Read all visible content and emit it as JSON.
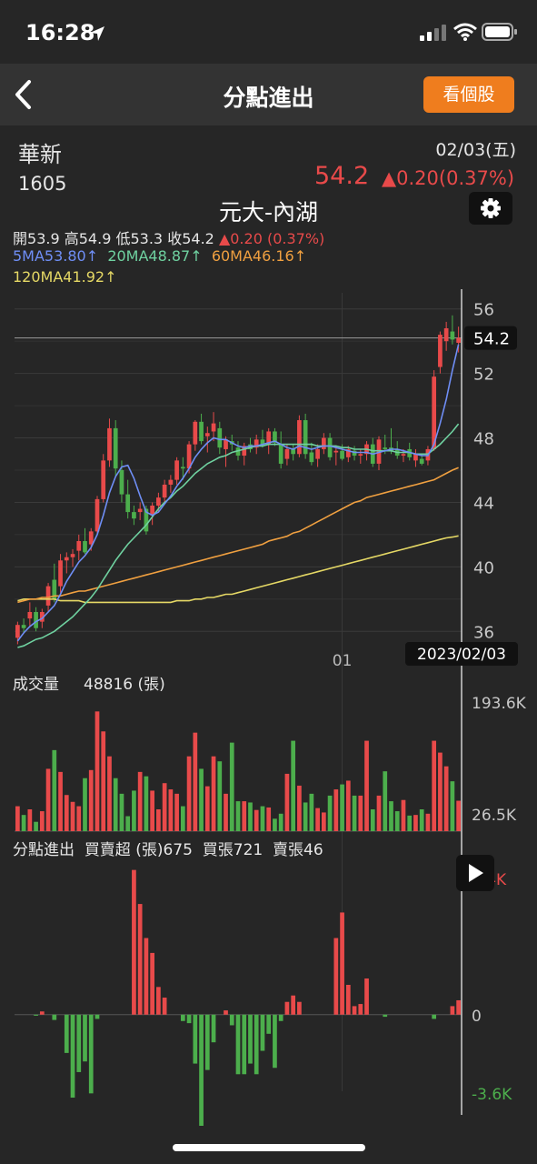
{
  "status_bar": {
    "time": "16:28"
  },
  "nav": {
    "title": "分點進出",
    "view_stock_label": "看個股"
  },
  "stock": {
    "name": "華新",
    "code": "1605",
    "date": "02/03(五)",
    "price": "54.2",
    "change": "▲0.20(0.37%)"
  },
  "broker": "元大-內湖",
  "ohlc": {
    "open_label": "開",
    "open": "53.9",
    "high_label": "高",
    "high": "54.9",
    "low_label": "低",
    "low": "53.3",
    "close_label": "收",
    "close": "54.2",
    "change": "▲0.20 (0.37%)"
  },
  "ma": {
    "ma5": "5MA53.80↑",
    "ma20": "20MA48.87↑",
    "ma60": "60MA46.16↑",
    "ma120": "120MA41.92↑"
  },
  "colors": {
    "up": "#e84a4a",
    "down": "#4cae4c",
    "ma5": "#6f8ef5",
    "ma20": "#6fd1a0",
    "ma60": "#f0a040",
    "ma120": "#e5d865",
    "accent": "#ef7d1e"
  },
  "price_axis": {
    "ticks": [
      "56",
      "52",
      "48",
      "44",
      "40",
      "36"
    ],
    "current_label": "54.2"
  },
  "x_axis": {
    "month_label": "01",
    "cursor_date": "2023/02/03"
  },
  "volume": {
    "label": "成交量",
    "value": "48816 (張)",
    "axis_top": "193.6K",
    "axis_bottom": "26.5K"
  },
  "flow": {
    "label": "分點進出",
    "net_label": "買賣超 (張)",
    "net_value": "675",
    "buy_label": "買張",
    "buy_value": "721",
    "sell_label": "賣張",
    "sell_value": "46",
    "axis_top": "6.4K",
    "axis_zero": "0",
    "axis_bottom": "-3.6K"
  },
  "chart_data": {
    "type": "candlestick",
    "price_range": [
      35,
      57
    ],
    "candles": [
      [
        35.6,
        36.6,
        35.2,
        36.4
      ],
      [
        36.4,
        36.8,
        35.9,
        36.2
      ],
      [
        36.8,
        37.8,
        36.3,
        37.2
      ],
      [
        37.2,
        37.5,
        36.0,
        36.2
      ],
      [
        36.6,
        37.4,
        36.2,
        37.2
      ],
      [
        37.6,
        39.0,
        37.2,
        38.8
      ],
      [
        39.2,
        40.2,
        37.8,
        38.0
      ],
      [
        38.8,
        40.8,
        38.4,
        40.4
      ],
      [
        40.4,
        40.9,
        39.6,
        40.6
      ],
      [
        40.6,
        41.1,
        40.0,
        40.8
      ],
      [
        41.0,
        42.0,
        40.4,
        41.6
      ],
      [
        41.6,
        42.4,
        40.8,
        40.9
      ],
      [
        41.4,
        42.4,
        41.0,
        42.2
      ],
      [
        42.2,
        44.4,
        42.0,
        44.2
      ],
      [
        44.2,
        47.0,
        44.0,
        46.6
      ],
      [
        46.6,
        49.2,
        46.2,
        48.6
      ],
      [
        48.6,
        49.1,
        45.6,
        46.1
      ],
      [
        46.0,
        46.6,
        44.0,
        44.5
      ],
      [
        44.5,
        45.4,
        43.0,
        43.4
      ],
      [
        43.4,
        43.8,
        42.6,
        43.0
      ],
      [
        43.4,
        44.0,
        42.9,
        43.6
      ],
      [
        43.6,
        43.8,
        42.0,
        42.2
      ],
      [
        43.2,
        44.0,
        42.6,
        43.8
      ],
      [
        43.8,
        44.6,
        43.4,
        44.3
      ],
      [
        44.3,
        45.4,
        43.9,
        45.1
      ],
      [
        45.1,
        45.7,
        44.6,
        45.4
      ],
      [
        45.4,
        46.8,
        45.1,
        46.6
      ],
      [
        46.2,
        46.8,
        45.4,
        46.1
      ],
      [
        46.1,
        47.8,
        45.8,
        47.6
      ],
      [
        47.6,
        49.1,
        47.2,
        49.0
      ],
      [
        49.0,
        49.5,
        47.6,
        47.8
      ],
      [
        48.1,
        48.7,
        47.1,
        48.3
      ],
      [
        48.4,
        49.6,
        47.8,
        48.9
      ],
      [
        48.6,
        49.0,
        47.0,
        47.4
      ],
      [
        47.3,
        48.1,
        46.2,
        47.9
      ],
      [
        47.8,
        48.2,
        47.2,
        47.6
      ],
      [
        47.4,
        47.8,
        46.6,
        46.9
      ],
      [
        46.9,
        47.7,
        46.3,
        47.5
      ],
      [
        47.6,
        48.0,
        47.1,
        47.3
      ],
      [
        47.4,
        48.2,
        47.0,
        47.9
      ],
      [
        47.9,
        48.5,
        47.4,
        47.6
      ],
      [
        47.6,
        48.6,
        47.0,
        48.4
      ],
      [
        48.4,
        48.6,
        47.5,
        47.7
      ],
      [
        47.6,
        48.4,
        46.1,
        46.4
      ],
      [
        46.7,
        47.6,
        46.3,
        47.3
      ],
      [
        47.3,
        47.6,
        46.6,
        47.0
      ],
      [
        47.0,
        49.4,
        46.8,
        49.1
      ],
      [
        49.1,
        49.5,
        46.7,
        47.0
      ],
      [
        47.1,
        47.7,
        46.3,
        46.5
      ],
      [
        46.7,
        47.6,
        46.2,
        47.3
      ],
      [
        47.3,
        48.3,
        47.0,
        48.0
      ],
      [
        48.0,
        48.3,
        46.6,
        46.8
      ],
      [
        47.1,
        47.5,
        46.3,
        47.2
      ],
      [
        47.2,
        47.6,
        46.6,
        46.7
      ],
      [
        46.8,
        47.5,
        46.5,
        47.3
      ],
      [
        47.2,
        47.5,
        46.6,
        46.9
      ],
      [
        46.9,
        47.3,
        46.4,
        47.0
      ],
      [
        47.0,
        47.8,
        46.6,
        47.6
      ],
      [
        47.6,
        48.0,
        46.2,
        46.4
      ],
      [
        46.4,
        48.1,
        46.0,
        47.9
      ],
      [
        47.4,
        48.2,
        47.0,
        47.3
      ],
      [
        47.4,
        48.6,
        47.0,
        47.2
      ],
      [
        47.3,
        47.8,
        46.7,
        46.9
      ],
      [
        46.9,
        47.3,
        46.5,
        47.0
      ],
      [
        47.3,
        47.7,
        46.6,
        46.8
      ],
      [
        46.6,
        47.3,
        46.2,
        47.0
      ],
      [
        46.7,
        47.0,
        46.3,
        46.4
      ],
      [
        46.6,
        47.5,
        46.3,
        47.3
      ],
      [
        47.3,
        52.2,
        47.2,
        51.8
      ],
      [
        52.4,
        54.6,
        52.0,
        54.4
      ],
      [
        54.0,
        55.2,
        53.4,
        54.8
      ],
      [
        54.6,
        55.6,
        53.8,
        54.1
      ],
      [
        53.9,
        54.9,
        53.3,
        54.2
      ]
    ],
    "ma5": [
      35.4,
      35.9,
      36.3,
      36.6,
      36.8,
      37.2,
      37.6,
      38.3,
      39.1,
      39.7,
      40.3,
      40.7,
      41.2,
      42.0,
      43.2,
      44.6,
      45.6,
      46.2,
      46.3,
      45.5,
      44.4,
      43.4,
      43.2,
      43.4,
      43.9,
      44.4,
      45.0,
      45.5,
      46.1,
      46.8,
      47.3,
      47.7,
      48.0,
      47.9,
      47.9,
      47.7,
      47.5,
      47.4,
      47.5,
      47.5,
      47.6,
      47.7,
      47.8,
      47.6,
      47.4,
      47.3,
      47.5,
      47.4,
      47.3,
      47.4,
      47.5,
      47.5,
      47.4,
      47.3,
      47.2,
      47.1,
      47.1,
      47.1,
      47.0,
      47.1,
      47.2,
      47.3,
      47.3,
      47.2,
      47.1,
      47.0,
      46.9,
      46.9,
      47.6,
      48.9,
      50.4,
      52.2,
      53.8
    ],
    "ma20": [
      35.0,
      35.1,
      35.3,
      35.5,
      35.6,
      35.8,
      36.0,
      36.3,
      36.6,
      36.9,
      37.3,
      37.7,
      38.1,
      38.6,
      39.2,
      39.8,
      40.4,
      40.9,
      41.4,
      41.8,
      42.2,
      42.6,
      43.1,
      43.6,
      44.0,
      44.3,
      44.7,
      45.0,
      45.4,
      45.8,
      46.1,
      46.4,
      46.6,
      46.8,
      46.9,
      47.1,
      47.2,
      47.3,
      47.4,
      47.5,
      47.5,
      47.6,
      47.6,
      47.6,
      47.6,
      47.6,
      47.6,
      47.6,
      47.6,
      47.5,
      47.5,
      47.5,
      47.5,
      47.4,
      47.4,
      47.3,
      47.3,
      47.3,
      47.2,
      47.2,
      47.2,
      47.2,
      47.1,
      47.1,
      47.1,
      47.0,
      47.0,
      47.0,
      47.3,
      47.6,
      48.0,
      48.4,
      48.87
    ],
    "ma60": [
      37.8,
      37.9,
      38.0,
      38.0,
      38.1,
      38.1,
      38.2,
      38.2,
      38.3,
      38.4,
      38.5,
      38.5,
      38.6,
      38.7,
      38.8,
      38.9,
      39.0,
      39.1,
      39.2,
      39.3,
      39.4,
      39.5,
      39.6,
      39.7,
      39.8,
      39.9,
      40.0,
      40.1,
      40.2,
      40.3,
      40.4,
      40.5,
      40.6,
      40.7,
      40.8,
      40.9,
      41.0,
      41.1,
      41.2,
      41.3,
      41.4,
      41.6,
      41.7,
      41.8,
      41.9,
      42.1,
      42.2,
      42.4,
      42.6,
      42.8,
      43.0,
      43.2,
      43.4,
      43.6,
      43.8,
      44.0,
      44.1,
      44.3,
      44.4,
      44.5,
      44.6,
      44.7,
      44.8,
      44.9,
      45.0,
      45.1,
      45.2,
      45.3,
      45.4,
      45.6,
      45.8,
      46.0,
      46.16
    ],
    "ma120": [
      37.9,
      38.0,
      38.0,
      38.0,
      38.0,
      38.0,
      38.0,
      37.9,
      37.9,
      37.9,
      37.9,
      37.8,
      37.8,
      37.8,
      37.8,
      37.8,
      37.8,
      37.8,
      37.8,
      37.8,
      37.8,
      37.8,
      37.8,
      37.8,
      37.8,
      37.8,
      37.9,
      37.9,
      37.9,
      38.0,
      38.0,
      38.1,
      38.1,
      38.2,
      38.3,
      38.3,
      38.4,
      38.5,
      38.6,
      38.7,
      38.8,
      38.9,
      39.0,
      39.1,
      39.2,
      39.3,
      39.4,
      39.5,
      39.6,
      39.7,
      39.8,
      39.9,
      40.0,
      40.1,
      40.2,
      40.3,
      40.4,
      40.5,
      40.6,
      40.7,
      40.8,
      40.9,
      41.0,
      41.1,
      41.2,
      41.3,
      41.4,
      41.5,
      41.6,
      41.7,
      41.8,
      41.85,
      41.92
    ],
    "volume_range": [
      0,
      210000
    ],
    "volume": [
      40,
      26,
      35,
      15,
      32,
      100,
      130,
      95,
      58,
      47,
      40,
      85,
      98,
      192,
      160,
      120,
      85,
      60,
      24,
      65,
      95,
      88,
      65,
      35,
      77,
      67,
      60,
      40,
      120,
      158,
      100,
      72,
      120,
      112,
      60,
      142,
      48,
      48,
      46,
      34,
      40,
      38,
      20,
      28,
      92,
      145,
      73,
      46,
      60,
      37,
      30,
      57,
      67,
      75,
      81,
      57,
      57,
      145,
      35,
      57,
      96,
      48,
      32,
      50,
      25,
      26,
      35,
      28,
      145,
      126,
      104,
      80,
      48.8
    ],
    "flow_range": [
      -3.6,
      6.4
    ],
    "flow": [
      0,
      0,
      0,
      -0.05,
      0.15,
      0,
      -0.25,
      0,
      -1.8,
      -3.9,
      -2.7,
      -2.2,
      -3.7,
      -0.2,
      0,
      0,
      0,
      0,
      0,
      6.8,
      5.2,
      3.6,
      2.9,
      1.3,
      0.8,
      0,
      0,
      -0.3,
      -0.4,
      -2.3,
      -5.9,
      -2.6,
      -1.3,
      0,
      0.2,
      -0.5,
      -2.8,
      -2.8,
      -2.3,
      -2.8,
      -1.7,
      -0.9,
      -2.5,
      -0.3,
      0.6,
      0.9,
      0.6,
      0,
      0,
      0,
      0,
      0,
      3.6,
      4.8,
      1.4,
      0.4,
      0.5,
      1.7,
      0,
      0,
      -0.1,
      0,
      0,
      0,
      0,
      0,
      0,
      0,
      -0.2,
      0,
      0,
      0.4,
      0.675
    ],
    "month_tick_index": 53,
    "cursor_index": 72
  }
}
